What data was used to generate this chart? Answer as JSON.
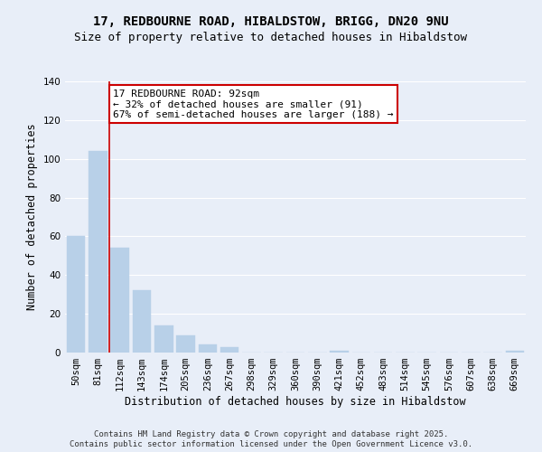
{
  "title": "17, REDBOURNE ROAD, HIBALDSTOW, BRIGG, DN20 9NU",
  "subtitle": "Size of property relative to detached houses in Hibaldstow",
  "xlabel": "Distribution of detached houses by size in Hibaldstow",
  "ylabel": "Number of detached properties",
  "bar_color": "#b8d0e8",
  "bar_edge_color": "#b8d0e8",
  "categories": [
    "50sqm",
    "81sqm",
    "112sqm",
    "143sqm",
    "174sqm",
    "205sqm",
    "236sqm",
    "267sqm",
    "298sqm",
    "329sqm",
    "360sqm",
    "390sqm",
    "421sqm",
    "452sqm",
    "483sqm",
    "514sqm",
    "545sqm",
    "576sqm",
    "607sqm",
    "638sqm",
    "669sqm"
  ],
  "values": [
    60,
    104,
    54,
    32,
    14,
    9,
    4,
    3,
    0,
    0,
    0,
    0,
    1,
    0,
    0,
    0,
    0,
    0,
    0,
    0,
    1
  ],
  "ylim": [
    0,
    140
  ],
  "yticks": [
    0,
    20,
    40,
    60,
    80,
    100,
    120,
    140
  ],
  "property_line_x": 1.5,
  "property_sqm": 92,
  "annotation_title": "17 REDBOURNE ROAD: 92sqm",
  "annotation_line1": "← 32% of detached houses are smaller (91)",
  "annotation_line2": "67% of semi-detached houses are larger (188) →",
  "annotation_box_color": "#ffffff",
  "annotation_border_color": "#cc0000",
  "vline_color": "#cc0000",
  "footer1": "Contains HM Land Registry data © Crown copyright and database right 2025.",
  "footer2": "Contains public sector information licensed under the Open Government Licence v3.0.",
  "background_color": "#e8eef8",
  "grid_color": "#ffffff",
  "title_fontsize": 10,
  "subtitle_fontsize": 9,
  "axis_label_fontsize": 8.5,
  "tick_fontsize": 7.5,
  "annotation_fontsize": 8,
  "footer_fontsize": 6.5
}
